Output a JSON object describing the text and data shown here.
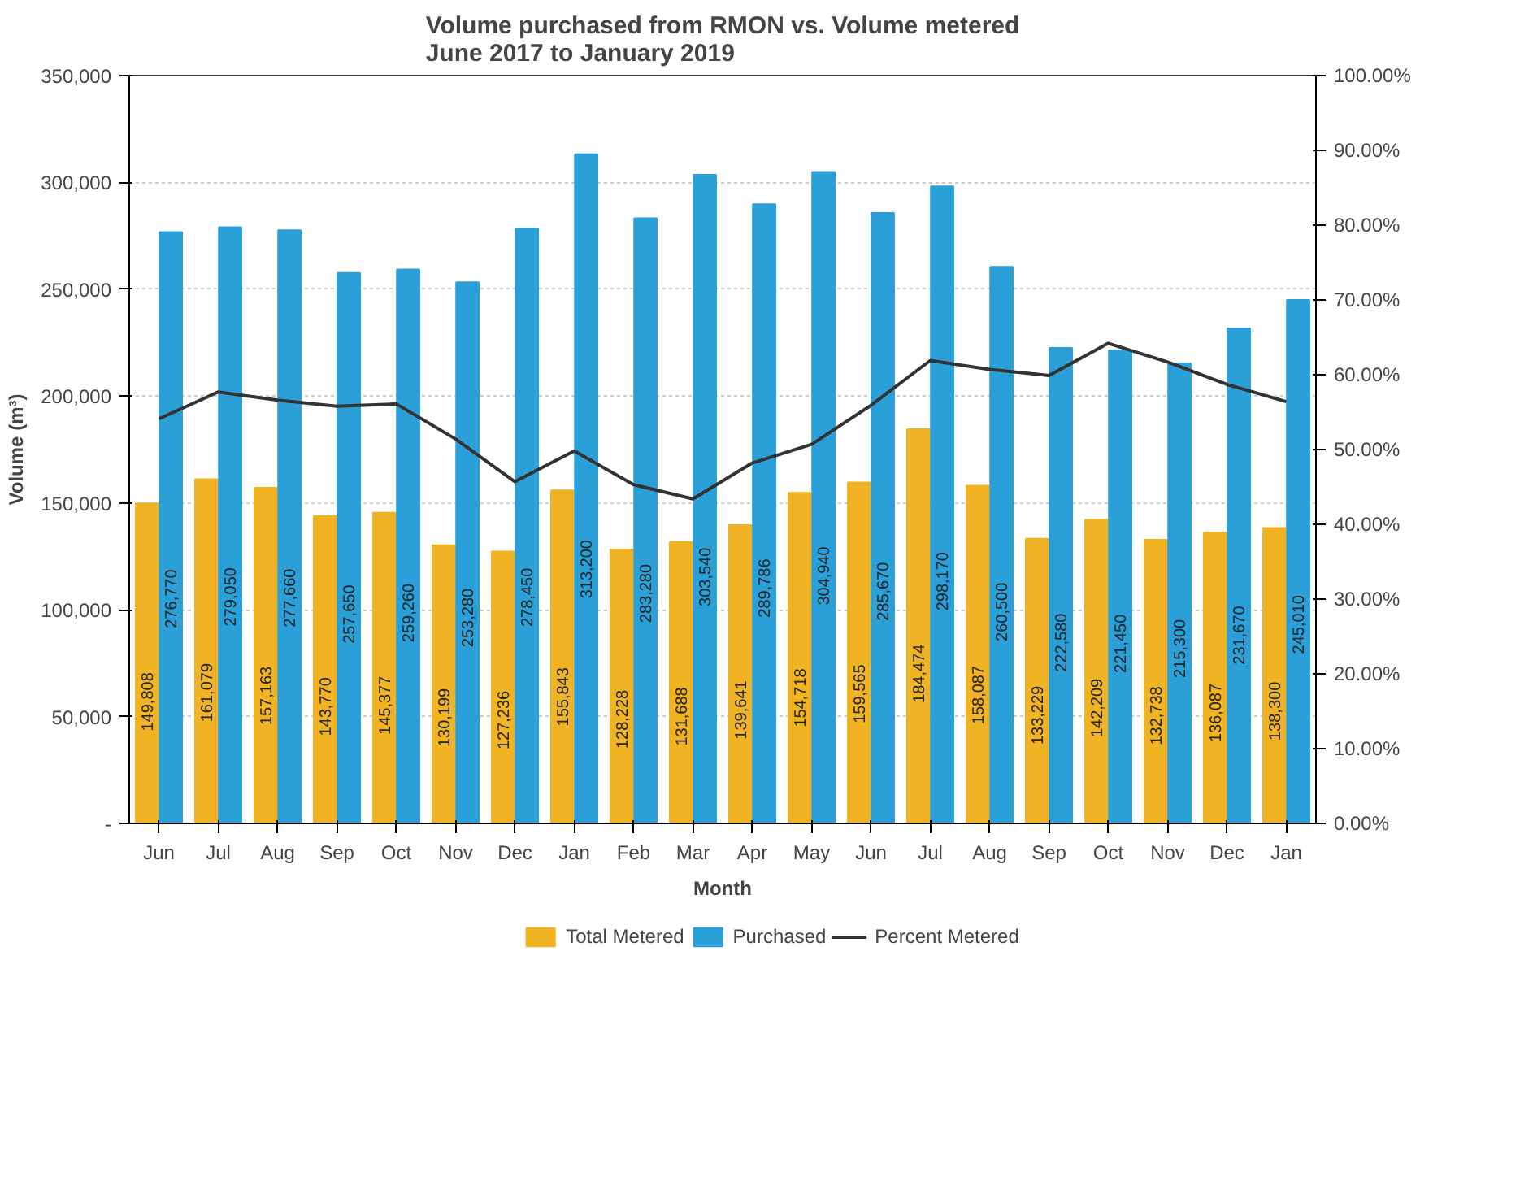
{
  "chart_data": {
    "type": "bar",
    "title": "Volume purchased from RMON vs. Volume metered\nJune 2017 to January 2019",
    "xlabel": "Month",
    "ylabel": "Volume (m³)",
    "categories": [
      "Jun",
      "Jul",
      "Aug",
      "Sep",
      "Oct",
      "Nov",
      "Dec",
      "Jan",
      "Feb",
      "Mar",
      "Apr",
      "May",
      "Jun",
      "Jul",
      "Aug",
      "Sep",
      "Oct",
      "Nov",
      "Dec",
      "Jan"
    ],
    "series": [
      {
        "name": "Total Metered",
        "color": "#f0b323",
        "values": [
          149808,
          161079,
          157163,
          143770,
          145377,
          130199,
          127236,
          155843,
          128228,
          131688,
          139641,
          154718,
          159565,
          184474,
          158087,
          133229,
          142209,
          132738,
          136087,
          138300
        ],
        "value_labels": [
          "149,808",
          "161,079",
          "157,163",
          "143,770",
          "145,377",
          "130,199",
          "127,236",
          "155,843",
          "128,228",
          "131,688",
          "139,641",
          "154,718",
          "159,565",
          "184,474",
          "158,087",
          "133,229",
          "142,209",
          "132,738",
          "136,087",
          "138,300"
        ]
      },
      {
        "name": "Purchased",
        "color": "#2a9fd8",
        "values": [
          276770,
          279050,
          277660,
          257650,
          259260,
          253280,
          278450,
          313200,
          283280,
          303540,
          289786,
          304940,
          285670,
          298170,
          260500,
          222580,
          221450,
          215300,
          231670,
          245010
        ],
        "value_labels": [
          "276,770",
          "279,050",
          "277,660",
          "257,650",
          "259,260",
          "253,280",
          "278,450",
          "313,200",
          "283,280",
          "303,540",
          "289,786",
          "304,940",
          "285,670",
          "298,170",
          "260,500",
          "222,580",
          "221,450",
          "215,300",
          "231,670",
          "245,010"
        ]
      },
      {
        "name": "Percent Metered",
        "type": "line",
        "axis": "y2",
        "color": "#333333",
        "values": [
          54.1,
          57.7,
          56.6,
          55.8,
          56.1,
          51.4,
          45.7,
          49.8,
          45.3,
          43.4,
          48.2,
          50.7,
          55.9,
          61.9,
          60.7,
          59.9,
          64.2,
          61.7,
          58.7,
          56.4
        ]
      }
    ],
    "ylim": [
      0,
      350000
    ],
    "yticks": [
      {
        "value": 0,
        "label": "-"
      },
      {
        "value": 50000,
        "label": "50,000"
      },
      {
        "value": 100000,
        "label": "100,000"
      },
      {
        "value": 150000,
        "label": "150,000"
      },
      {
        "value": 200000,
        "label": "200,000"
      },
      {
        "value": 250000,
        "label": "250,000"
      },
      {
        "value": 300000,
        "label": "300,000"
      },
      {
        "value": 350000,
        "label": "350,000"
      }
    ],
    "y2lim": [
      0,
      100
    ],
    "y2ticks": [
      {
        "value": 0,
        "label": "0.00%"
      },
      {
        "value": 10,
        "label": "10.00%"
      },
      {
        "value": 20,
        "label": "20.00%"
      },
      {
        "value": 30,
        "label": "30.00%"
      },
      {
        "value": 40,
        "label": "40.00%"
      },
      {
        "value": 50,
        "label": "50.00%"
      },
      {
        "value": 60,
        "label": "60.00%"
      },
      {
        "value": 70,
        "label": "70.00%"
      },
      {
        "value": 80,
        "label": "80.00%"
      },
      {
        "value": 90,
        "label": "90.00%"
      },
      {
        "value": 100,
        "label": "100.00%"
      }
    ],
    "grid": "y",
    "legend": "bottom",
    "marker": "none",
    "line_style": "solid"
  }
}
